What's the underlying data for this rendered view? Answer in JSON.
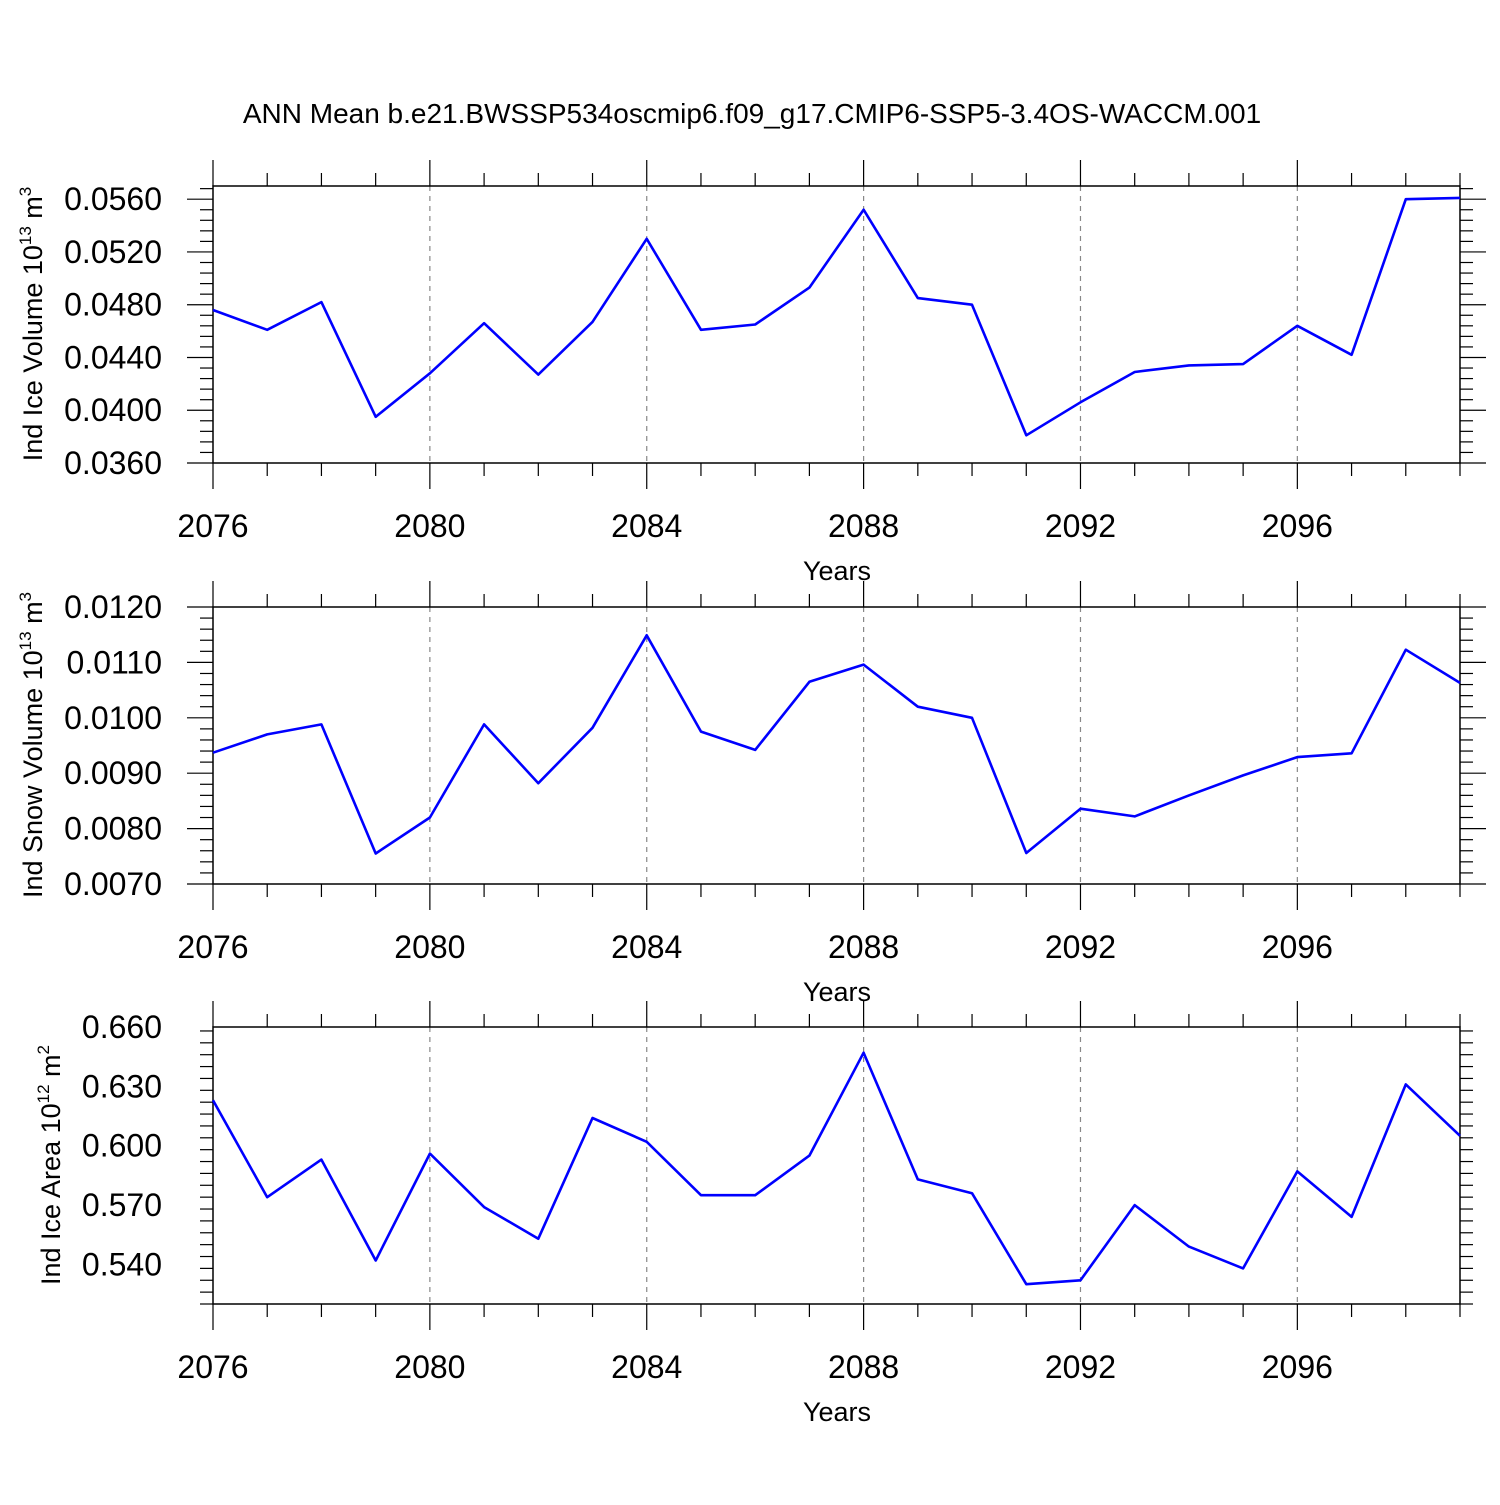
{
  "title": "ANN Mean b.e21.BWSSP534oscmip6.f09_g17.CMIP6-SSP5-3.4OS-WACCM.001",
  "chart_data": [
    {
      "type": "line",
      "ylabel": {
        "prefix": "Ind Ice Volume 10",
        "exp": "13",
        "mid": " m",
        "unit_exp": "3"
      },
      "xlabel": "Years",
      "xlim": [
        2076,
        2099
      ],
      "ylim": [
        0.036,
        0.057
      ],
      "yticks": [
        0.036,
        0.04,
        0.044,
        0.048,
        0.052,
        0.056
      ],
      "ytick_labels": [
        "0.0360",
        "0.0400",
        "0.0440",
        "0.0480",
        "0.0520",
        "0.0560"
      ],
      "xticks": [
        2076,
        2080,
        2084,
        2088,
        2092,
        2096
      ],
      "xtick_labels": [
        "2076",
        "2080",
        "2084",
        "2088",
        "2092",
        "2096"
      ],
      "grid": "vertical dashed at labeled years",
      "series": [
        {
          "color": "#0000ff",
          "x": [
            2076,
            2077,
            2078,
            2079,
            2080,
            2081,
            2082,
            2083,
            2084,
            2085,
            2086,
            2087,
            2088,
            2089,
            2090,
            2091,
            2092,
            2093,
            2094,
            2095,
            2096,
            2097,
            2098,
            2099
          ],
          "y": [
            0.0476,
            0.0461,
            0.0482,
            0.0395,
            0.0428,
            0.0466,
            0.0427,
            0.0467,
            0.053,
            0.0461,
            0.0465,
            0.0493,
            0.0552,
            0.0485,
            0.048,
            0.0381,
            0.0406,
            0.0429,
            0.0434,
            0.0435,
            0.0464,
            0.0442,
            0.056,
            0.0561
          ]
        }
      ]
    },
    {
      "type": "line",
      "ylabel": {
        "prefix": "Ind Snow Volume 10",
        "exp": "13",
        "mid": " m",
        "unit_exp": "3"
      },
      "xlabel": "Years",
      "xlim": [
        2076,
        2099
      ],
      "ylim": [
        0.007,
        0.012
      ],
      "yticks": [
        0.007,
        0.008,
        0.009,
        0.01,
        0.011,
        0.012
      ],
      "ytick_labels": [
        "0.0070",
        "0.0080",
        "0.0090",
        "0.0100",
        "0.0110",
        "0.0120"
      ],
      "xticks": [
        2076,
        2080,
        2084,
        2088,
        2092,
        2096
      ],
      "xtick_labels": [
        "2076",
        "2080",
        "2084",
        "2088",
        "2092",
        "2096"
      ],
      "grid": "vertical dashed at labeled years",
      "series": [
        {
          "color": "#0000ff",
          "x": [
            2076,
            2077,
            2078,
            2079,
            2080,
            2081,
            2082,
            2083,
            2084,
            2085,
            2086,
            2087,
            2088,
            2089,
            2090,
            2091,
            2092,
            2093,
            2094,
            2095,
            2096,
            2097,
            2098,
            2099
          ],
          "y": [
            0.00937,
            0.0097,
            0.00988,
            0.00755,
            0.0082,
            0.00988,
            0.00882,
            0.00982,
            0.01149,
            0.00975,
            0.00942,
            0.01065,
            0.01096,
            0.0102,
            0.01,
            0.00756,
            0.00836,
            0.00822,
            0.0086,
            0.00896,
            0.00929,
            0.00936,
            0.01123,
            0.01063
          ]
        }
      ]
    },
    {
      "type": "line",
      "ylabel": {
        "prefix": "Ind Ice Area 10",
        "exp": "12",
        "mid": " m",
        "unit_exp": "2"
      },
      "xlabel": "Years",
      "xlim": [
        2076,
        2099
      ],
      "ylim": [
        0.52,
        0.66
      ],
      "yticks": [
        0.54,
        0.57,
        0.6,
        0.63,
        0.66
      ],
      "ytick_labels": [
        "0.540",
        "0.570",
        "0.600",
        "0.630",
        "0.660"
      ],
      "xticks": [
        2076,
        2080,
        2084,
        2088,
        2092,
        2096
      ],
      "xtick_labels": [
        "2076",
        "2080",
        "2084",
        "2088",
        "2092",
        "2096"
      ],
      "grid": "vertical dashed at labeled years",
      "series": [
        {
          "color": "#0000ff",
          "x": [
            2076,
            2077,
            2078,
            2079,
            2080,
            2081,
            2082,
            2083,
            2084,
            2085,
            2086,
            2087,
            2088,
            2089,
            2090,
            2091,
            2092,
            2093,
            2094,
            2095,
            2096,
            2097,
            2098,
            2099
          ],
          "y": [
            0.623,
            0.574,
            0.593,
            0.542,
            0.596,
            0.569,
            0.553,
            0.614,
            0.602,
            0.575,
            0.575,
            0.595,
            0.647,
            0.583,
            0.576,
            0.53,
            0.532,
            0.57,
            0.549,
            0.538,
            0.587,
            0.564,
            0.631,
            0.605
          ]
        }
      ]
    }
  ]
}
